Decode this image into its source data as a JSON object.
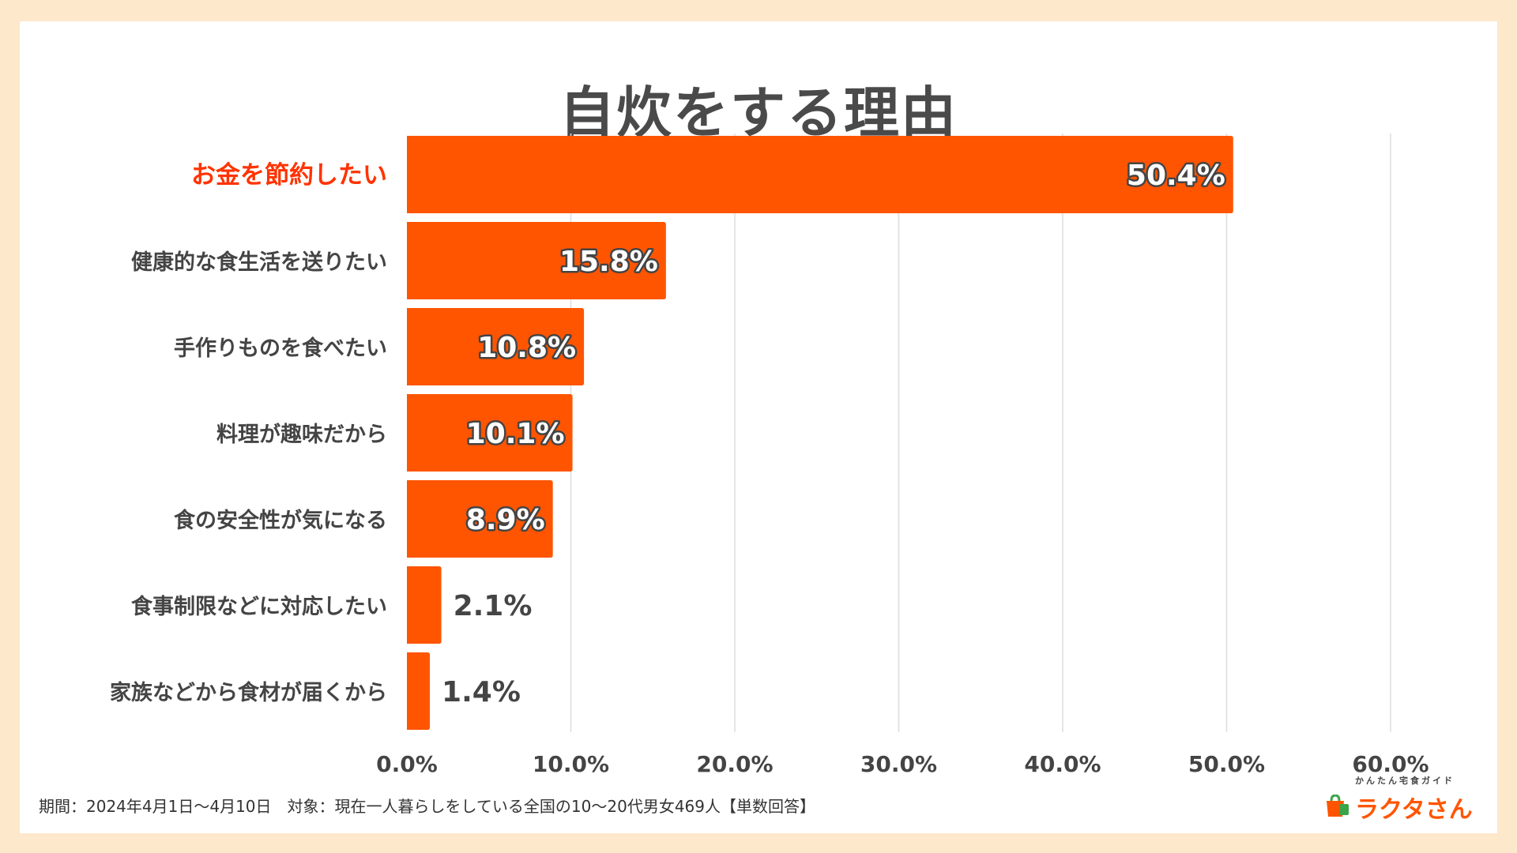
{
  "colors": {
    "bar": "#ff5500",
    "highlight_label": "#ff3300",
    "label": "#444444",
    "grid": "#dddddd",
    "background": "#fde8cc"
  },
  "chart_data": {
    "type": "bar",
    "orientation": "horizontal",
    "title": "自炊をする理由",
    "categories": [
      "お金を節約したい",
      "健康的な食生活を送りたい",
      "手作りものを食べたい",
      "料理が趣味だから",
      "食の安全性が気になる",
      "食事制限などに対応したい",
      "家族などから食材が届くから"
    ],
    "values": [
      50.4,
      15.8,
      10.8,
      10.1,
      8.9,
      2.1,
      1.4
    ],
    "data_labels": [
      "50.4%",
      "15.8%",
      "10.8%",
      "10.1%",
      "8.9%",
      "2.1%",
      "1.4%"
    ],
    "highlight_index": 0,
    "xlim": [
      0,
      60
    ],
    "xticks": [
      0,
      10,
      20,
      30,
      40,
      50,
      60
    ],
    "xtick_labels": [
      "0.0%",
      "10.0%",
      "20.0%",
      "30.0%",
      "40.0%",
      "50.0%",
      "60.0%"
    ],
    "grid": true,
    "legend": "none"
  },
  "footer": {
    "note": "期間：2024年4月1日〜4月10日　対象：現在一人暮らしをしている全国の10〜20代男女469人【単数回答】"
  },
  "logo": {
    "tagline": "かんたん宅食ガイド",
    "name": "ラクタさん",
    "icon": "shopping-bag-icon"
  }
}
